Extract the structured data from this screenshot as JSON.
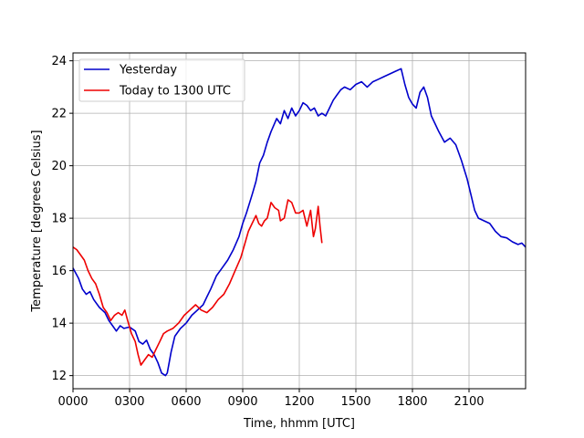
{
  "chart_data": {
    "type": "line",
    "title": "",
    "xlabel": "Time, hhmm [UTC]",
    "ylabel": "Temperature [degrees Celsius]",
    "x_unit": "hours UTC",
    "xlim": [
      0,
      24
    ],
    "ylim": [
      11.5,
      24.3
    ],
    "xticks": [
      0,
      3,
      6,
      9,
      12,
      15,
      18,
      21
    ],
    "xtick_labels": [
      "0000",
      "0300",
      "0600",
      "0900",
      "1200",
      "1500",
      "1800",
      "2100"
    ],
    "yticks": [
      12,
      14,
      16,
      18,
      20,
      22,
      24
    ],
    "ytick_labels": [
      "12",
      "14",
      "16",
      "18",
      "20",
      "22",
      "24"
    ],
    "grid": true,
    "legend_position": "top-left",
    "series": [
      {
        "name": "Yesterday",
        "color": "#0000cc",
        "points": [
          [
            0.0,
            16.1
          ],
          [
            0.3,
            15.7
          ],
          [
            0.5,
            15.3
          ],
          [
            0.7,
            15.1
          ],
          [
            0.9,
            15.2
          ],
          [
            1.1,
            14.9
          ],
          [
            1.4,
            14.6
          ],
          [
            1.7,
            14.4
          ],
          [
            1.9,
            14.1
          ],
          [
            2.1,
            13.9
          ],
          [
            2.3,
            13.7
          ],
          [
            2.5,
            13.9
          ],
          [
            2.7,
            13.8
          ],
          [
            3.0,
            13.85
          ],
          [
            3.3,
            13.7
          ],
          [
            3.5,
            13.3
          ],
          [
            3.7,
            13.2
          ],
          [
            3.9,
            13.35
          ],
          [
            4.1,
            13.0
          ],
          [
            4.3,
            12.8
          ],
          [
            4.5,
            12.5
          ],
          [
            4.7,
            12.1
          ],
          [
            4.9,
            12.0
          ],
          [
            5.0,
            12.1
          ],
          [
            5.2,
            12.9
          ],
          [
            5.4,
            13.5
          ],
          [
            5.7,
            13.8
          ],
          [
            6.0,
            14.0
          ],
          [
            6.3,
            14.3
          ],
          [
            6.6,
            14.5
          ],
          [
            6.9,
            14.7
          ],
          [
            7.1,
            15.0
          ],
          [
            7.3,
            15.3
          ],
          [
            7.6,
            15.8
          ],
          [
            7.9,
            16.1
          ],
          [
            8.2,
            16.4
          ],
          [
            8.5,
            16.8
          ],
          [
            8.8,
            17.3
          ],
          [
            9.0,
            17.8
          ],
          [
            9.2,
            18.2
          ],
          [
            9.5,
            18.9
          ],
          [
            9.7,
            19.4
          ],
          [
            9.9,
            20.1
          ],
          [
            10.1,
            20.4
          ],
          [
            10.3,
            20.9
          ],
          [
            10.5,
            21.3
          ],
          [
            10.8,
            21.8
          ],
          [
            11.0,
            21.6
          ],
          [
            11.2,
            22.1
          ],
          [
            11.4,
            21.8
          ],
          [
            11.6,
            22.2
          ],
          [
            11.8,
            21.9
          ],
          [
            12.0,
            22.1
          ],
          [
            12.2,
            22.4
          ],
          [
            12.4,
            22.3
          ],
          [
            12.6,
            22.1
          ],
          [
            12.8,
            22.2
          ],
          [
            13.0,
            21.9
          ],
          [
            13.2,
            22.0
          ],
          [
            13.4,
            21.9
          ],
          [
            13.6,
            22.2
          ],
          [
            13.8,
            22.5
          ],
          [
            14.0,
            22.7
          ],
          [
            14.2,
            22.9
          ],
          [
            14.4,
            23.0
          ],
          [
            14.7,
            22.9
          ],
          [
            15.0,
            23.1
          ],
          [
            15.3,
            23.2
          ],
          [
            15.6,
            23.0
          ],
          [
            15.9,
            23.2
          ],
          [
            16.2,
            23.3
          ],
          [
            16.5,
            23.4
          ],
          [
            16.8,
            23.5
          ],
          [
            17.1,
            23.6
          ],
          [
            17.4,
            23.7
          ],
          [
            17.6,
            23.1
          ],
          [
            17.8,
            22.6
          ],
          [
            18.0,
            22.35
          ],
          [
            18.2,
            22.2
          ],
          [
            18.4,
            22.8
          ],
          [
            18.6,
            23.0
          ],
          [
            18.8,
            22.6
          ],
          [
            19.0,
            21.9
          ],
          [
            19.2,
            21.6
          ],
          [
            19.4,
            21.3
          ],
          [
            19.7,
            20.9
          ],
          [
            20.0,
            21.05
          ],
          [
            20.3,
            20.8
          ],
          [
            20.6,
            20.2
          ],
          [
            20.9,
            19.5
          ],
          [
            21.1,
            18.9
          ],
          [
            21.3,
            18.3
          ],
          [
            21.5,
            18.0
          ],
          [
            21.8,
            17.9
          ],
          [
            22.1,
            17.8
          ],
          [
            22.4,
            17.5
          ],
          [
            22.7,
            17.3
          ],
          [
            23.0,
            17.25
          ],
          [
            23.3,
            17.1
          ],
          [
            23.6,
            17.0
          ],
          [
            23.8,
            17.05
          ],
          [
            24.0,
            16.9
          ]
        ]
      },
      {
        "name": "Today to 1300 UTC",
        "color": "#ee0000",
        "points": [
          [
            0.0,
            16.9
          ],
          [
            0.2,
            16.8
          ],
          [
            0.4,
            16.6
          ],
          [
            0.6,
            16.4
          ],
          [
            0.8,
            16.0
          ],
          [
            1.0,
            15.7
          ],
          [
            1.2,
            15.5
          ],
          [
            1.4,
            15.1
          ],
          [
            1.6,
            14.6
          ],
          [
            1.8,
            14.4
          ],
          [
            2.0,
            14.1
          ],
          [
            2.2,
            14.3
          ],
          [
            2.4,
            14.4
          ],
          [
            2.6,
            14.3
          ],
          [
            2.75,
            14.5
          ],
          [
            2.9,
            14.1
          ],
          [
            3.1,
            13.6
          ],
          [
            3.3,
            13.3
          ],
          [
            3.45,
            12.8
          ],
          [
            3.6,
            12.4
          ],
          [
            3.8,
            12.6
          ],
          [
            4.0,
            12.8
          ],
          [
            4.2,
            12.7
          ],
          [
            4.4,
            13.0
          ],
          [
            4.6,
            13.3
          ],
          [
            4.8,
            13.6
          ],
          [
            5.0,
            13.7
          ],
          [
            5.3,
            13.8
          ],
          [
            5.6,
            14.0
          ],
          [
            5.9,
            14.3
          ],
          [
            6.2,
            14.5
          ],
          [
            6.5,
            14.7
          ],
          [
            6.8,
            14.5
          ],
          [
            7.1,
            14.4
          ],
          [
            7.4,
            14.6
          ],
          [
            7.7,
            14.9
          ],
          [
            8.0,
            15.1
          ],
          [
            8.3,
            15.5
          ],
          [
            8.6,
            16.0
          ],
          [
            8.9,
            16.5
          ],
          [
            9.1,
            17.0
          ],
          [
            9.3,
            17.5
          ],
          [
            9.5,
            17.8
          ],
          [
            9.7,
            18.1
          ],
          [
            9.85,
            17.8
          ],
          [
            10.0,
            17.7
          ],
          [
            10.15,
            17.9
          ],
          [
            10.3,
            18.0
          ],
          [
            10.5,
            18.6
          ],
          [
            10.7,
            18.4
          ],
          [
            10.9,
            18.3
          ],
          [
            11.0,
            17.9
          ],
          [
            11.2,
            18.0
          ],
          [
            11.4,
            18.7
          ],
          [
            11.6,
            18.6
          ],
          [
            11.8,
            18.2
          ],
          [
            12.0,
            18.2
          ],
          [
            12.2,
            18.3
          ],
          [
            12.4,
            17.7
          ],
          [
            12.6,
            18.3
          ],
          [
            12.75,
            17.3
          ],
          [
            12.85,
            17.6
          ],
          [
            13.0,
            18.45
          ],
          [
            13.1,
            17.7
          ],
          [
            13.2,
            17.05
          ]
        ]
      }
    ]
  }
}
